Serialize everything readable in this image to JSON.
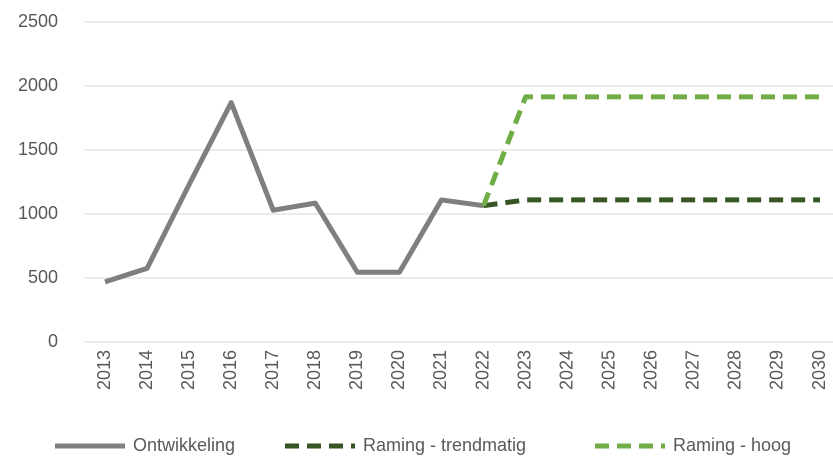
{
  "chart_data": {
    "type": "line",
    "categories": [
      "2013",
      "2014",
      "2015",
      "2016",
      "2017",
      "2018",
      "2019",
      "2020",
      "2021",
      "2022",
      "2023",
      "2024",
      "2025",
      "2026",
      "2027",
      "2028",
      "2029",
      "2030"
    ],
    "series": [
      {
        "name": "Ontwikkeling",
        "color": "#7f7f7f",
        "dashed": false,
        "values": [
          470,
          575,
          1230,
          1870,
          1030,
          1085,
          545,
          545,
          1110,
          1065,
          null,
          null,
          null,
          null,
          null,
          null,
          null,
          null
        ]
      },
      {
        "name": "Raming - trendmatig",
        "color": "#375623",
        "dashed": true,
        "values": [
          null,
          null,
          null,
          null,
          null,
          null,
          null,
          null,
          null,
          1065,
          1110,
          1110,
          1110,
          1110,
          1110,
          1110,
          1110,
          1110
        ]
      },
      {
        "name": "Raming - hoog",
        "color": "#70ad47",
        "dashed": true,
        "values": [
          null,
          null,
          null,
          null,
          null,
          null,
          null,
          null,
          null,
          1065,
          1915,
          1915,
          1915,
          1915,
          1915,
          1915,
          1915,
          1915
        ]
      }
    ],
    "ylim": [
      0,
      2500
    ],
    "yticks": [
      0,
      500,
      1000,
      1500,
      2000,
      2500
    ],
    "grid": true,
    "legend": "bottom"
  }
}
